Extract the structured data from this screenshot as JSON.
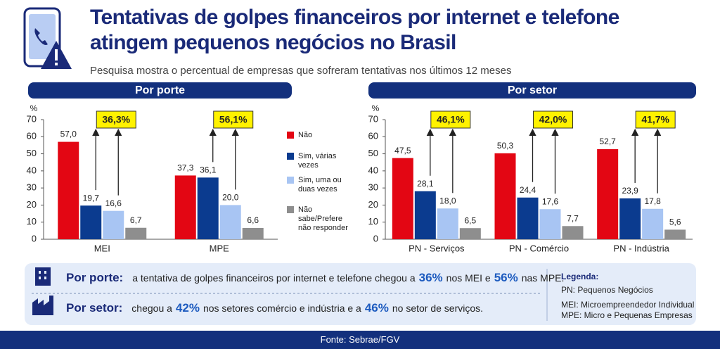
{
  "header": {
    "title_line1": "Tentativas de golpes financeiros por internet e telefone",
    "title_line2": "atingem pequenos negócios no Brasil",
    "subtitle": "Pesquisa mostra o percentual de empresas que sofreram tentativas nos últimos 12 meses"
  },
  "chart_data": [
    {
      "type": "bar",
      "section": "Por porte",
      "y_label": "%",
      "categories": [
        "MEI",
        "MPE"
      ],
      "series": [
        {
          "name": "Não",
          "color": "#e30613",
          "values": [
            57.0,
            37.3
          ],
          "value_labels": [
            "57,0",
            "37,3"
          ]
        },
        {
          "name": "Sim, várias vezes",
          "color": "#0b3b8f",
          "values": [
            19.7,
            36.1
          ],
          "value_labels": [
            "19,7",
            "36,1"
          ]
        },
        {
          "name": "Sim, uma ou duas vezes",
          "color": "#a8c5f3",
          "values": [
            16.6,
            20.0
          ],
          "value_labels": [
            "16,6",
            "20,0"
          ]
        },
        {
          "name": "Não sabe/Prefere não responder",
          "color": "#8e8e8e",
          "values": [
            6.7,
            6.6
          ],
          "value_labels": [
            "6,7",
            "6,6"
          ]
        }
      ],
      "callouts": [
        "36,3%",
        "56,1%"
      ],
      "ylim": [
        0,
        70
      ],
      "yticks": [
        0,
        10,
        20,
        30,
        40,
        50,
        60,
        70
      ]
    },
    {
      "type": "bar",
      "section": "Por setor",
      "y_label": "%",
      "categories": [
        "PN - Serviços",
        "PN - Comércio",
        "PN - Indústria"
      ],
      "series": [
        {
          "color": "#e30613",
          "values": [
            47.5,
            50.3,
            52.7
          ],
          "value_labels": [
            "47,5",
            "50,3",
            "52,7"
          ]
        },
        {
          "color": "#0b3b8f",
          "values": [
            28.1,
            24.4,
            23.9
          ],
          "value_labels": [
            "28,1",
            "24,4",
            "23,9"
          ]
        },
        {
          "color": "#a8c5f3",
          "values": [
            18.0,
            17.6,
            17.8
          ],
          "value_labels": [
            "18,0",
            "17,6",
            "17,8"
          ]
        },
        {
          "color": "#8e8e8e",
          "values": [
            6.5,
            7.7,
            5.6
          ],
          "value_labels": [
            "6,5",
            "7,7",
            "5,6"
          ]
        }
      ],
      "callouts": [
        "46,1%",
        "42,0%",
        "41,7%"
      ],
      "ylim": [
        0,
        70
      ],
      "yticks": [
        0,
        10,
        20,
        30,
        40,
        50,
        60,
        70
      ]
    }
  ],
  "summary": {
    "rows": [
      {
        "heading": "Por porte:",
        "parts": [
          "a tentativa de golpes financeiros por internet e telefone chegou a",
          "36%",
          "nos MEI e",
          "56%",
          "nas MPE."
        ]
      },
      {
        "heading": "Por setor:",
        "parts": [
          "chegou a",
          "42%",
          "nos setores comércio e indústria e a",
          "46%",
          "no setor de serviços."
        ]
      }
    ],
    "legend": {
      "title": "Legenda:",
      "items": [
        "PN: Pequenos Negócios",
        "MEI: Microempreendedor Individual",
        "MPE: Micro e Pequenas Empresas"
      ]
    }
  },
  "footer": "Fonte: Sebrae/FGV"
}
